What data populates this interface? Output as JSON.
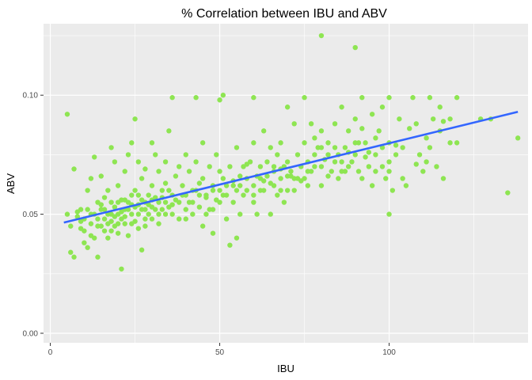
{
  "chart_data": {
    "type": "scatter",
    "title": "% Correlation between IBU and ABV",
    "xlabel": "IBU",
    "ylabel": "ABV",
    "xlim": [
      -2,
      141
    ],
    "ylim": [
      -0.004,
      0.13
    ],
    "xticks": [
      0,
      50,
      100
    ],
    "xtick_labels": [
      "0",
      "50",
      "100"
    ],
    "yticks": [
      0.0,
      0.05,
      0.1
    ],
    "ytick_labels": [
      "0.00",
      "0.05",
      "0.10"
    ],
    "grid": true,
    "legend": "none",
    "colors": {
      "panel_background": "#ebebeb",
      "grid_major": "#ffffff",
      "points": "#8ee552",
      "trend_line": "#3366ff"
    },
    "trend_line": {
      "x": [
        4,
        138
      ],
      "y": [
        0.0465,
        0.093
      ]
    },
    "points": [
      [
        5,
        0.092
      ],
      [
        5,
        0.05
      ],
      [
        6,
        0.045
      ],
      [
        7,
        0.069
      ],
      [
        6,
        0.034
      ],
      [
        7,
        0.032
      ],
      [
        8,
        0.049
      ],
      [
        9,
        0.052
      ],
      [
        9,
        0.047
      ],
      [
        10,
        0.038
      ],
      [
        10,
        0.043
      ],
      [
        11,
        0.036
      ],
      [
        11,
        0.06
      ],
      [
        12,
        0.065
      ],
      [
        12,
        0.05
      ],
      [
        13,
        0.04
      ],
      [
        13,
        0.074
      ],
      [
        14,
        0.032
      ],
      [
        14,
        0.055
      ],
      [
        15,
        0.045
      ],
      [
        15,
        0.066
      ],
      [
        15,
        0.052
      ],
      [
        16,
        0.048
      ],
      [
        16,
        0.043
      ],
      [
        17,
        0.06
      ],
      [
        17,
        0.05
      ],
      [
        17,
        0.04
      ],
      [
        18,
        0.078
      ],
      [
        18,
        0.055
      ],
      [
        18,
        0.047
      ],
      [
        19,
        0.072
      ],
      [
        19,
        0.045
      ],
      [
        19,
        0.053
      ],
      [
        20,
        0.062
      ],
      [
        20,
        0.05
      ],
      [
        20,
        0.042
      ],
      [
        21,
        0.027
      ],
      [
        21,
        0.056
      ],
      [
        21,
        0.048
      ],
      [
        22,
        0.068
      ],
      [
        22,
        0.052
      ],
      [
        22,
        0.046
      ],
      [
        23,
        0.075
      ],
      [
        23,
        0.055
      ],
      [
        23,
        0.041
      ],
      [
        24,
        0.08
      ],
      [
        24,
        0.058
      ],
      [
        24,
        0.05
      ],
      [
        25,
        0.09
      ],
      [
        25,
        0.06
      ],
      [
        25,
        0.047
      ],
      [
        26,
        0.072
      ],
      [
        26,
        0.054
      ],
      [
        26,
        0.044
      ],
      [
        27,
        0.065
      ],
      [
        27,
        0.052
      ],
      [
        27,
        0.035
      ],
      [
        28,
        0.069
      ],
      [
        28,
        0.055
      ],
      [
        28,
        0.048
      ],
      [
        29,
        0.058
      ],
      [
        29,
        0.05
      ],
      [
        30,
        0.08
      ],
      [
        30,
        0.062
      ],
      [
        30,
        0.053
      ],
      [
        31,
        0.075
      ],
      [
        31,
        0.057
      ],
      [
        32,
        0.068
      ],
      [
        32,
        0.05
      ],
      [
        33,
        0.06
      ],
      [
        33,
        0.052
      ],
      [
        34,
        0.072
      ],
      [
        34,
        0.055
      ],
      [
        35,
        0.085
      ],
      [
        35,
        0.06
      ],
      [
        36,
        0.099
      ],
      [
        36,
        0.058
      ],
      [
        36,
        0.05
      ],
      [
        37,
        0.066
      ],
      [
        38,
        0.07
      ],
      [
        38,
        0.055
      ],
      [
        39,
        0.062
      ],
      [
        40,
        0.075
      ],
      [
        40,
        0.058
      ],
      [
        40,
        0.048
      ],
      [
        41,
        0.068
      ],
      [
        42,
        0.06
      ],
      [
        42,
        0.05
      ],
      [
        43,
        0.099
      ],
      [
        43,
        0.072
      ],
      [
        44,
        0.063
      ],
      [
        44,
        0.053
      ],
      [
        45,
        0.08
      ],
      [
        45,
        0.065
      ],
      [
        45,
        0.045
      ],
      [
        46,
        0.058
      ],
      [
        47,
        0.07
      ],
      [
        47,
        0.052
      ],
      [
        48,
        0.062
      ],
      [
        48,
        0.042
      ],
      [
        49,
        0.075
      ],
      [
        49,
        0.056
      ],
      [
        50,
        0.098
      ],
      [
        50,
        0.068
      ],
      [
        50,
        0.055
      ],
      [
        51,
        0.1
      ],
      [
        51,
        0.065
      ],
      [
        52,
        0.058
      ],
      [
        52,
        0.048
      ],
      [
        53,
        0.037
      ],
      [
        53,
        0.07
      ],
      [
        54,
        0.062
      ],
      [
        55,
        0.078
      ],
      [
        55,
        0.06
      ],
      [
        55,
        0.04
      ],
      [
        56,
        0.066
      ],
      [
        57,
        0.07
      ],
      [
        57,
        0.058
      ],
      [
        58,
        0.065
      ],
      [
        59,
        0.072
      ],
      [
        60,
        0.099
      ],
      [
        60,
        0.08
      ],
      [
        60,
        0.062
      ],
      [
        60,
        0.055
      ],
      [
        61,
        0.05
      ],
      [
        62,
        0.07
      ],
      [
        62,
        0.065
      ],
      [
        63,
        0.085
      ],
      [
        63,
        0.06
      ],
      [
        64,
        0.072
      ],
      [
        65,
        0.078
      ],
      [
        65,
        0.063
      ],
      [
        65,
        0.05
      ],
      [
        66,
        0.068
      ],
      [
        67,
        0.075
      ],
      [
        67,
        0.058
      ],
      [
        68,
        0.08
      ],
      [
        68,
        0.065
      ],
      [
        69,
        0.07
      ],
      [
        69,
        0.055
      ],
      [
        70,
        0.095
      ],
      [
        70,
        0.072
      ],
      [
        70,
        0.06
      ],
      [
        71,
        0.068
      ],
      [
        72,
        0.088
      ],
      [
        72,
        0.065
      ],
      [
        73,
        0.075
      ],
      [
        74,
        0.07
      ],
      [
        75,
        0.099
      ],
      [
        75,
        0.08
      ],
      [
        75,
        0.065
      ],
      [
        76,
        0.072
      ],
      [
        77,
        0.088
      ],
      [
        77,
        0.068
      ],
      [
        78,
        0.075
      ],
      [
        79,
        0.078
      ],
      [
        80,
        0.125
      ],
      [
        80,
        0.085
      ],
      [
        80,
        0.07
      ],
      [
        80,
        0.062
      ],
      [
        81,
        0.073
      ],
      [
        82,
        0.08
      ],
      [
        83,
        0.068
      ],
      [
        84,
        0.088
      ],
      [
        85,
        0.075
      ],
      [
        85,
        0.065
      ],
      [
        86,
        0.095
      ],
      [
        87,
        0.078
      ],
      [
        87,
        0.068
      ],
      [
        88,
        0.085
      ],
      [
        89,
        0.072
      ],
      [
        90,
        0.12
      ],
      [
        90,
        0.09
      ],
      [
        90,
        0.075
      ],
      [
        91,
        0.068
      ],
      [
        92,
        0.099
      ],
      [
        92,
        0.065
      ],
      [
        93,
        0.08
      ],
      [
        94,
        0.07
      ],
      [
        95,
        0.092
      ],
      [
        95,
        0.062
      ],
      [
        96,
        0.075
      ],
      [
        97,
        0.085
      ],
      [
        98,
        0.095
      ],
      [
        98,
        0.07
      ],
      [
        99,
        0.065
      ],
      [
        100,
        0.099
      ],
      [
        100,
        0.08
      ],
      [
        100,
        0.068
      ],
      [
        100,
        0.05
      ],
      [
        101,
        0.06
      ],
      [
        102,
        0.075
      ],
      [
        103,
        0.09
      ],
      [
        104,
        0.065
      ],
      [
        105,
        0.062
      ],
      [
        107,
        0.099
      ],
      [
        108,
        0.088
      ],
      [
        109,
        0.075
      ],
      [
        110,
        0.068
      ],
      [
        111,
        0.072
      ],
      [
        112,
        0.099
      ],
      [
        113,
        0.09
      ],
      [
        114,
        0.07
      ],
      [
        115,
        0.095
      ],
      [
        115,
        0.085
      ],
      [
        116,
        0.065
      ],
      [
        118,
        0.09
      ],
      [
        120,
        0.099
      ],
      [
        120,
        0.08
      ],
      [
        127,
        0.09
      ],
      [
        130,
        0.09
      ],
      [
        135,
        0.059
      ],
      [
        138,
        0.082
      ],
      [
        10,
        0.048
      ],
      [
        11,
        0.052
      ],
      [
        12,
        0.046
      ],
      [
        13,
        0.05
      ],
      [
        14,
        0.048
      ],
      [
        15,
        0.054
      ],
      [
        16,
        0.052
      ],
      [
        17,
        0.046
      ],
      [
        18,
        0.05
      ],
      [
        19,
        0.049
      ],
      [
        20,
        0.055
      ],
      [
        21,
        0.051
      ],
      [
        22,
        0.049
      ],
      [
        23,
        0.052
      ],
      [
        24,
        0.054
      ],
      [
        25,
        0.053
      ],
      [
        26,
        0.05
      ],
      [
        27,
        0.056
      ],
      [
        28,
        0.052
      ],
      [
        29,
        0.054
      ],
      [
        30,
        0.056
      ],
      [
        31,
        0.052
      ],
      [
        32,
        0.055
      ],
      [
        33,
        0.057
      ],
      [
        34,
        0.05
      ],
      [
        35,
        0.053
      ],
      [
        37,
        0.056
      ],
      [
        39,
        0.058
      ],
      [
        41,
        0.055
      ],
      [
        43,
        0.06
      ],
      [
        46,
        0.057
      ],
      [
        48,
        0.06
      ],
      [
        51,
        0.058
      ],
      [
        54,
        0.064
      ],
      [
        56,
        0.062
      ],
      [
        58,
        0.06
      ],
      [
        61,
        0.066
      ],
      [
        63,
        0.064
      ],
      [
        66,
        0.062
      ],
      [
        68,
        0.069
      ],
      [
        71,
        0.066
      ],
      [
        73,
        0.065
      ],
      [
        76,
        0.068
      ],
      [
        78,
        0.07
      ],
      [
        82,
        0.075
      ],
      [
        84,
        0.078
      ],
      [
        86,
        0.072
      ],
      [
        88,
        0.076
      ],
      [
        91,
        0.08
      ],
      [
        93,
        0.074
      ],
      [
        96,
        0.082
      ],
      [
        102,
        0.079
      ],
      [
        106,
        0.086
      ],
      [
        111,
        0.082
      ],
      [
        116,
        0.089
      ],
      [
        8,
        0.051
      ],
      [
        9,
        0.044
      ],
      [
        12,
        0.041
      ],
      [
        14,
        0.045
      ],
      [
        16,
        0.057
      ],
      [
        18,
        0.043
      ],
      [
        20,
        0.046
      ],
      [
        22,
        0.056
      ],
      [
        24,
        0.046
      ],
      [
        26,
        0.058
      ],
      [
        28,
        0.045
      ],
      [
        30,
        0.048
      ],
      [
        32,
        0.046
      ],
      [
        34,
        0.063
      ],
      [
        36,
        0.054
      ],
      [
        38,
        0.048
      ],
      [
        40,
        0.052
      ],
      [
        42,
        0.055
      ],
      [
        44,
        0.058
      ],
      [
        46,
        0.05
      ],
      [
        48,
        0.052
      ],
      [
        50,
        0.06
      ],
      [
        52,
        0.062
      ],
      [
        54,
        0.055
      ],
      [
        56,
        0.05
      ],
      [
        58,
        0.071
      ],
      [
        60,
        0.058
      ],
      [
        62,
        0.06
      ],
      [
        64,
        0.066
      ],
      [
        66,
        0.07
      ],
      [
        68,
        0.06
      ],
      [
        70,
        0.066
      ],
      [
        72,
        0.06
      ],
      [
        74,
        0.064
      ],
      [
        76,
        0.062
      ],
      [
        78,
        0.082
      ],
      [
        80,
        0.078
      ],
      [
        82,
        0.066
      ],
      [
        84,
        0.072
      ],
      [
        86,
        0.068
      ],
      [
        88,
        0.07
      ],
      [
        90,
        0.08
      ],
      [
        92,
        0.086
      ],
      [
        94,
        0.076
      ],
      [
        96,
        0.068
      ],
      [
        98,
        0.078
      ],
      [
        100,
        0.072
      ],
      [
        104,
        0.078
      ],
      [
        108,
        0.071
      ],
      [
        112,
        0.078
      ],
      [
        118,
        0.08
      ]
    ]
  }
}
